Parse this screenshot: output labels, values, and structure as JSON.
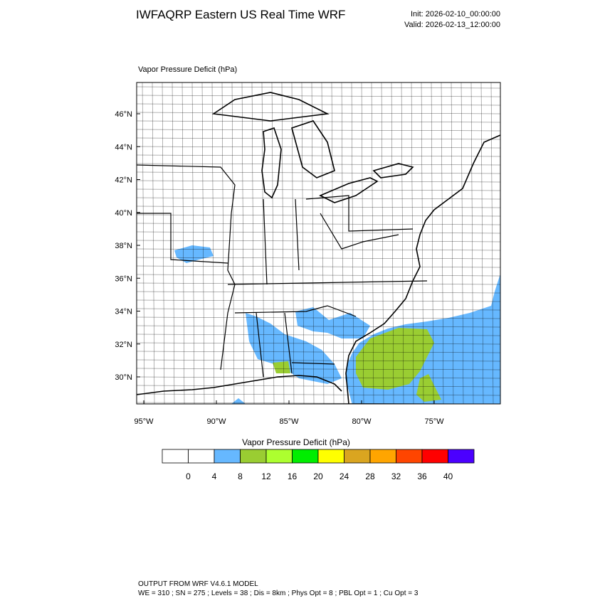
{
  "header": {
    "title": "IWFAQRP Eastern US Real Time WRF",
    "init": "Init: 2026-02-10_00:00:00",
    "valid": "Valid: 2026-02-13_12:00:00"
  },
  "map": {
    "subtitle": "Vapor Pressure Deficit   (hPa)",
    "lat_labels": [
      "46°N",
      "44°N",
      "42°N",
      "40°N",
      "38°N",
      "36°N",
      "34°N",
      "32°N",
      "30°N"
    ],
    "lon_labels": [
      "95°W",
      "90°W",
      "85°W",
      "80°W",
      "75°W"
    ]
  },
  "colorbar": {
    "title": "Vapor Pressure Deficit  (hPa)",
    "colors": [
      "#ffffff",
      "#ffffff",
      "#66b8ff",
      "#9acd32",
      "#adff2f",
      "#00ee00",
      "#ffff00",
      "#daa520",
      "#ffa500",
      "#ff4500",
      "#ff0000",
      "#4b00ff"
    ],
    "labels": [
      0,
      4,
      8,
      12,
      16,
      20,
      24,
      28,
      32,
      36,
      40
    ]
  },
  "footer": {
    "line1": "OUTPUT FROM WRF V4.6.1 MODEL",
    "line2": "WE = 310 ; SN = 275 ; Levels = 38 ; Dis = 8km ; Phys Opt = 8 ; PBL Opt = 1 ; Cu Opt = 3"
  }
}
